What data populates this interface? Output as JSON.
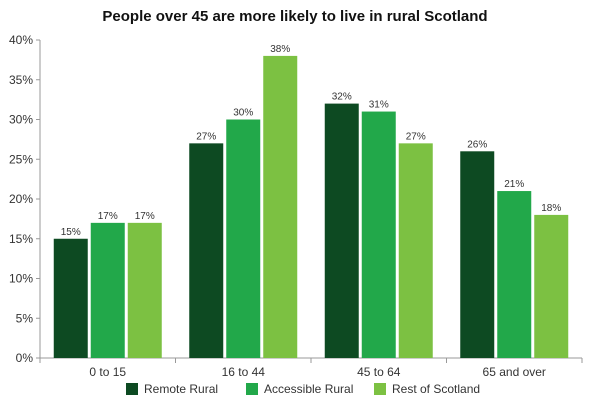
{
  "chart_data": {
    "type": "bar",
    "title": "People over 45 are more likely to live in rural Scotland",
    "xlabel": "",
    "ylabel": "",
    "categories": [
      "0 to 15",
      "16 to 44",
      "45 to 64",
      "65 and over"
    ],
    "series": [
      {
        "name": "Remote Rural",
        "values": [
          15,
          27,
          32,
          26
        ],
        "color": "#0d4a22"
      },
      {
        "name": "Accessible Rural",
        "values": [
          17,
          30,
          31,
          21
        ],
        "color": "#22a84a"
      },
      {
        "name": "Rest of Scotland",
        "values": [
          17,
          38,
          27,
          18
        ],
        "color": "#7cc142"
      }
    ],
    "value_suffix": "%",
    "ylim": [
      0,
      40
    ],
    "yticks": [
      0,
      5,
      10,
      15,
      20,
      25,
      30,
      35,
      40
    ],
    "ytick_labels": [
      "0%",
      "5%",
      "10%",
      "15%",
      "20%",
      "25%",
      "30%",
      "35%",
      "40%"
    ],
    "grid": false,
    "legend_position": "bottom"
  }
}
